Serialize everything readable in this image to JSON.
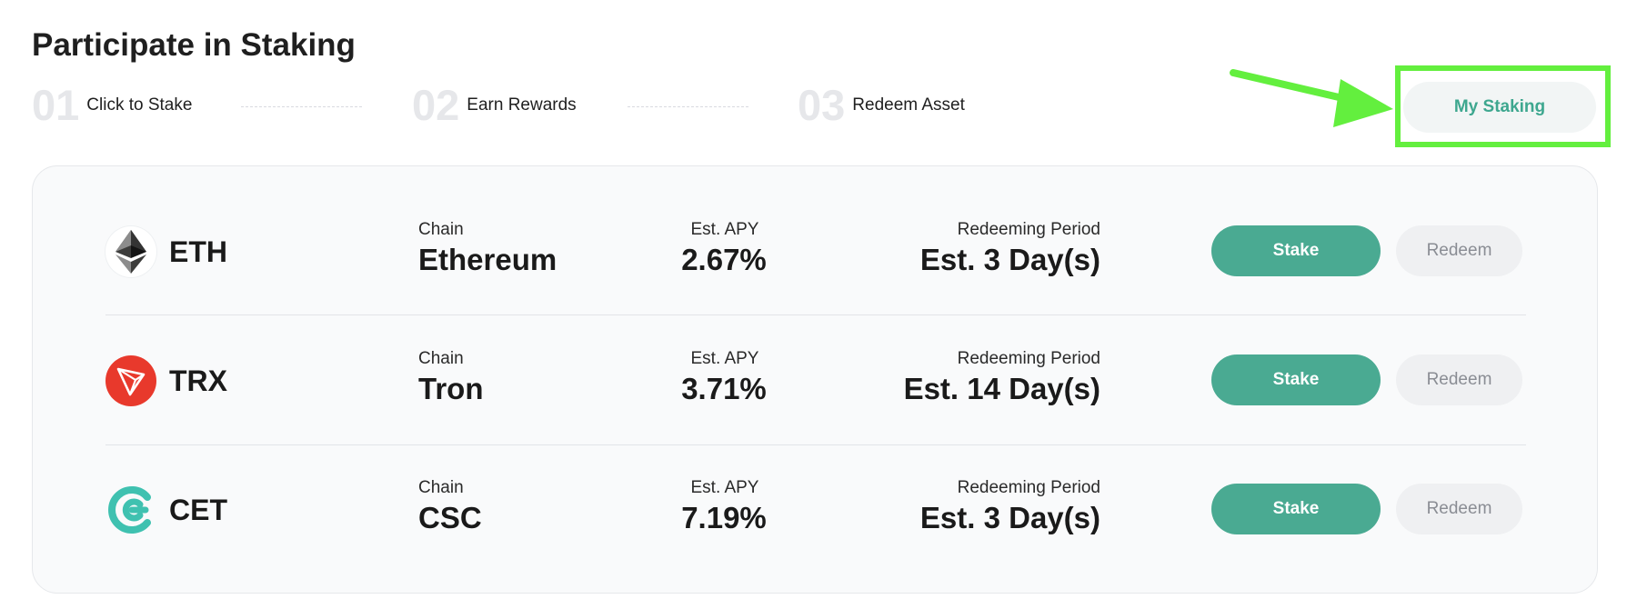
{
  "page": {
    "title": "Participate in Staking"
  },
  "steps": [
    {
      "number": "01",
      "label": "Click to Stake"
    },
    {
      "number": "02",
      "label": "Earn Rewards"
    },
    {
      "number": "03",
      "label": "Redeem Asset"
    }
  ],
  "my_staking": {
    "label": "My Staking"
  },
  "columns": {
    "chain": "Chain",
    "apy": "Est. APY",
    "period": "Redeeming Period"
  },
  "assets": [
    {
      "symbol": "ETH",
      "chain": "Ethereum",
      "apy": "2.67%",
      "period": "Est. 3 Day(s)",
      "icon": "ethereum-icon",
      "icon_color": "#1a1a1a"
    },
    {
      "symbol": "TRX",
      "chain": "Tron",
      "apy": "3.71%",
      "period": "Est. 14 Day(s)",
      "icon": "tron-icon",
      "icon_color": "#e8392c"
    },
    {
      "symbol": "CET",
      "chain": "CSC",
      "apy": "7.19%",
      "period": "Est. 3 Day(s)",
      "icon": "coinex-icon",
      "icon_color": "#3fc1b0"
    }
  ],
  "buttons": {
    "stake": "Stake",
    "redeem": "Redeem"
  },
  "colors": {
    "accent": "#4aaa92",
    "highlight": "#63ef3e",
    "tron_red": "#e8392c",
    "coinex_teal": "#3fc1b0"
  }
}
